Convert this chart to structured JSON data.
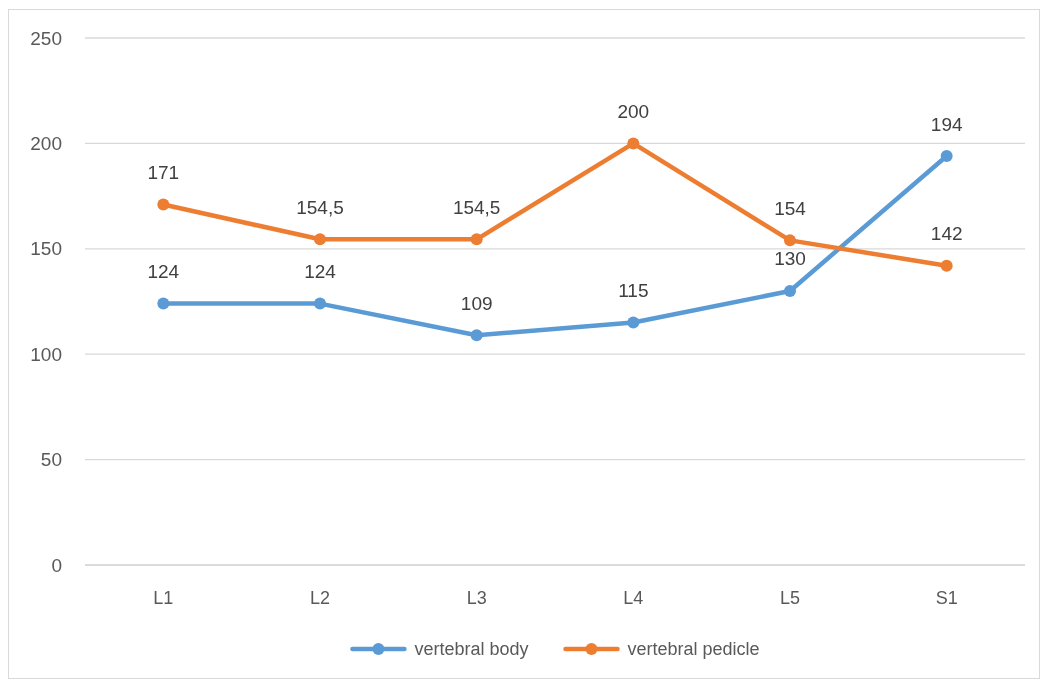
{
  "chart_data": {
    "type": "line",
    "categories": [
      "L1",
      "L2",
      "L3",
      "L4",
      "L5",
      "S1"
    ],
    "series": [
      {
        "name": "vertebral body",
        "color": "#5b9bd5",
        "values": [
          124,
          124,
          109,
          115,
          130,
          194
        ],
        "value_labels": [
          "124",
          "124",
          "109",
          "115",
          "130",
          "194"
        ]
      },
      {
        "name": "vertebral pedicle",
        "color": "#ed7d31",
        "values": [
          171,
          154.5,
          154.5,
          200,
          154,
          142
        ],
        "value_labels": [
          "171",
          "154,5",
          "154,5",
          "200",
          "154",
          "142"
        ]
      }
    ],
    "ylim": [
      0,
      250
    ],
    "yticks": [
      0,
      50,
      100,
      150,
      200,
      250
    ],
    "grid": "y",
    "legend": "bottom",
    "marker": "circle"
  }
}
